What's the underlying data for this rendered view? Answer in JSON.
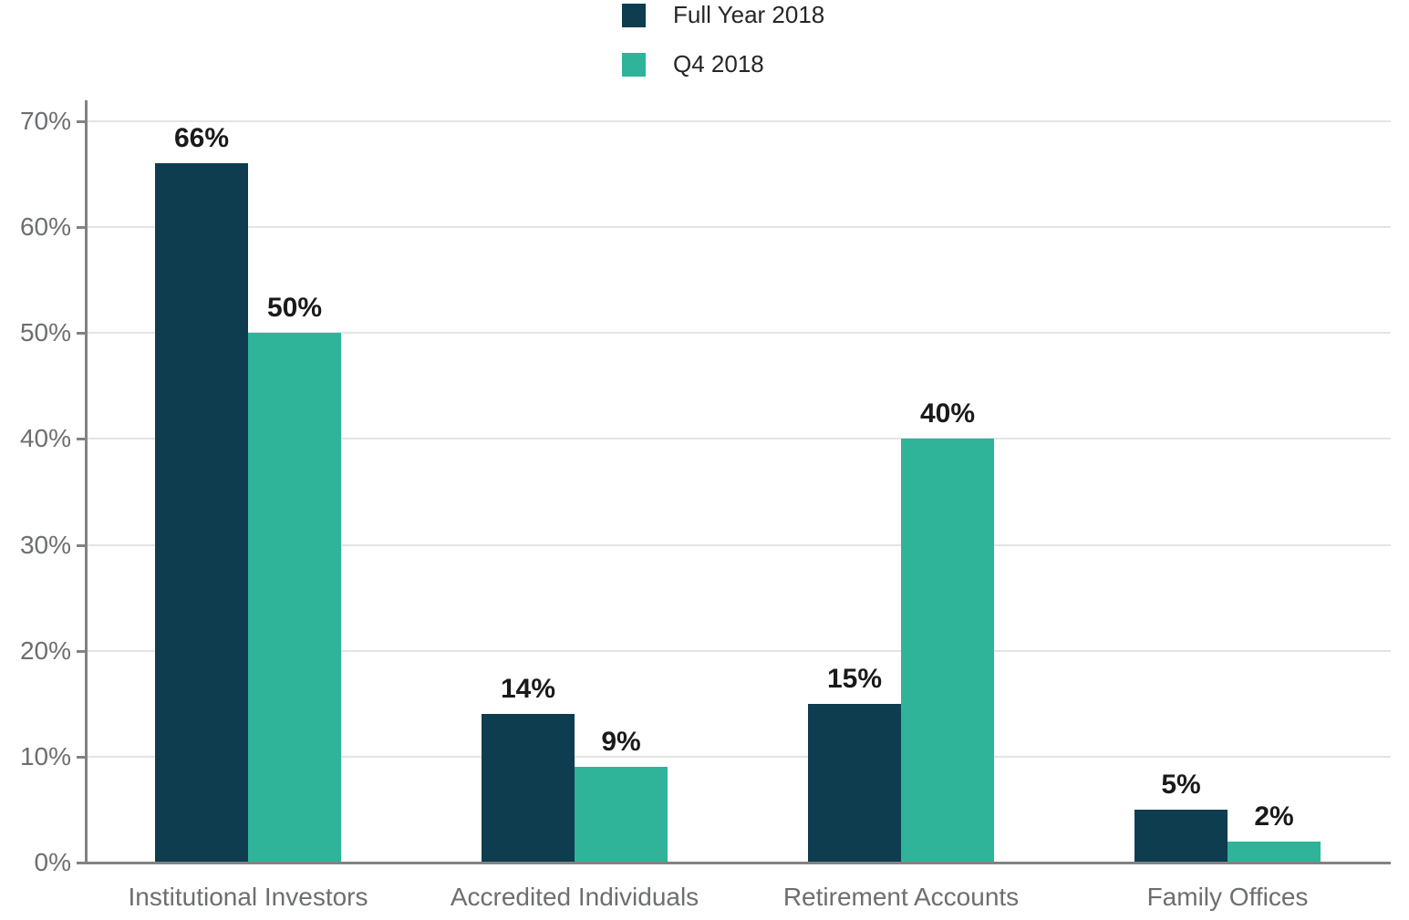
{
  "chart_data": {
    "type": "bar",
    "categories": [
      "Institutional Investors",
      "Accredited Individuals",
      "Retirement Accounts",
      "Family Offices"
    ],
    "series": [
      {
        "name": "Full Year 2018",
        "color": "#0d3d4f",
        "values": [
          66,
          14,
          15,
          5
        ],
        "data_labels": [
          "66%",
          "14%",
          "15%",
          "5%"
        ]
      },
      {
        "name": "Q4 2018",
        "color": "#2fb49a",
        "values": [
          50,
          9,
          40,
          2
        ],
        "data_labels": [
          "50%",
          "9%",
          "40%",
          "2%"
        ]
      }
    ],
    "ylim": [
      0,
      70
    ],
    "ytick_labels": [
      "0%",
      "10%",
      "20%",
      "30%",
      "40%",
      "50%",
      "60%",
      "70%"
    ],
    "ytick_values": [
      0,
      10,
      20,
      30,
      40,
      50,
      60,
      70
    ],
    "grid": true,
    "legend_position": "top-center",
    "title": "",
    "xlabel": "",
    "ylabel": ""
  },
  "style": {
    "grid_color": "#e4e4e4",
    "axis_color": "#828282",
    "ytick_label_color": "#6d6e71",
    "category_label_color": "#6d6e71",
    "data_label_color": "#1a1a1a",
    "legend_text_color": "#262626"
  }
}
